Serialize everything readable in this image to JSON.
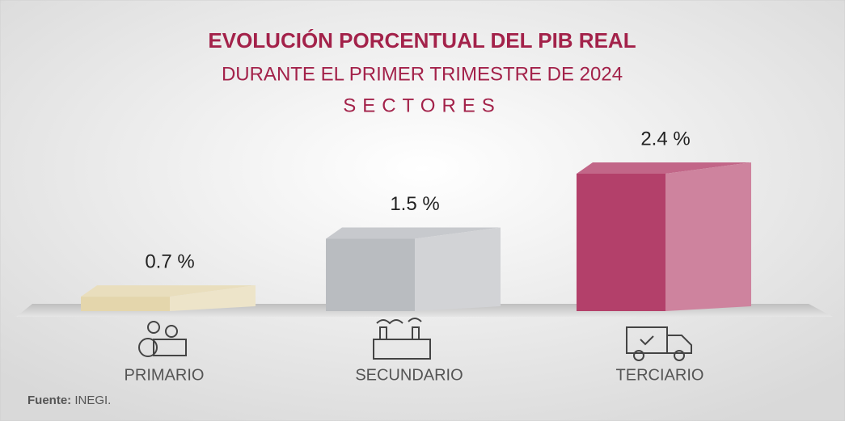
{
  "chart_data": {
    "type": "bar3d",
    "title": "EVOLUCIÓN PORCENTUAL DEL PIB REAL",
    "subtitle": "DURANTE EL PRIMER TRIMESTRE DE 2024",
    "subtitle2": "SECTORES",
    "categories": [
      "PRIMARIO",
      "SECUNDARIO",
      "TERCIARIO"
    ],
    "values": [
      0.7,
      1.5,
      2.4
    ],
    "value_labels": [
      "0.7 %",
      "1.5 %",
      "2.4 %"
    ],
    "colors": [
      "#e4d6ac",
      "#b9bcc0",
      "#b3406a"
    ],
    "ylim": [
      0.5,
      2.5
    ],
    "source_label": "Fuente:",
    "source_text": "INEGI."
  }
}
